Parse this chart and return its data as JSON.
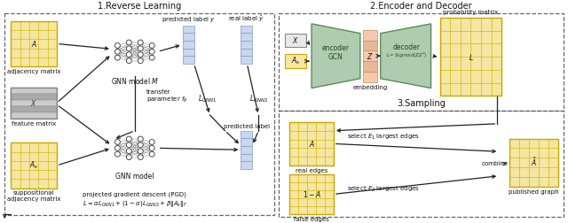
{
  "bg_color": "#ffffff",
  "section1_title": "1.Reverse Learning",
  "section2_title": "2.Encoder and Decoder",
  "section3_title": "3.Sampling",
  "matrix_fill": "#f5e6a3",
  "matrix_border": "#c8a800",
  "matrix_grid": "#d4b800",
  "feature_fill_even": "#cccccc",
  "feature_fill_odd": "#aaaaaa",
  "feature_border": "#888888",
  "vector_fill": "#c8d8f0",
  "vector_border": "#8899bb",
  "encoder_fill": "#b0ccb0",
  "encoder_edge": "#5a8a5a",
  "decoder_fill": "#b0ccb0",
  "decoder_edge": "#5a8a5a",
  "embedding_fill_a": "#f5c8b0",
  "embedding_fill_b": "#e8b898",
  "embedding_edge": "#cc8855",
  "box_gray_fill": "#e8e8e8",
  "box_gray_edge": "#888888",
  "box_yellow_fill": "#f5e6a3",
  "box_yellow_edge": "#c8a800",
  "box_dashed_color": "#666666",
  "arrow_color": "#222222",
  "text_color": "#111111",
  "label_fontsize": 5.5,
  "title_fontsize": 7.0
}
